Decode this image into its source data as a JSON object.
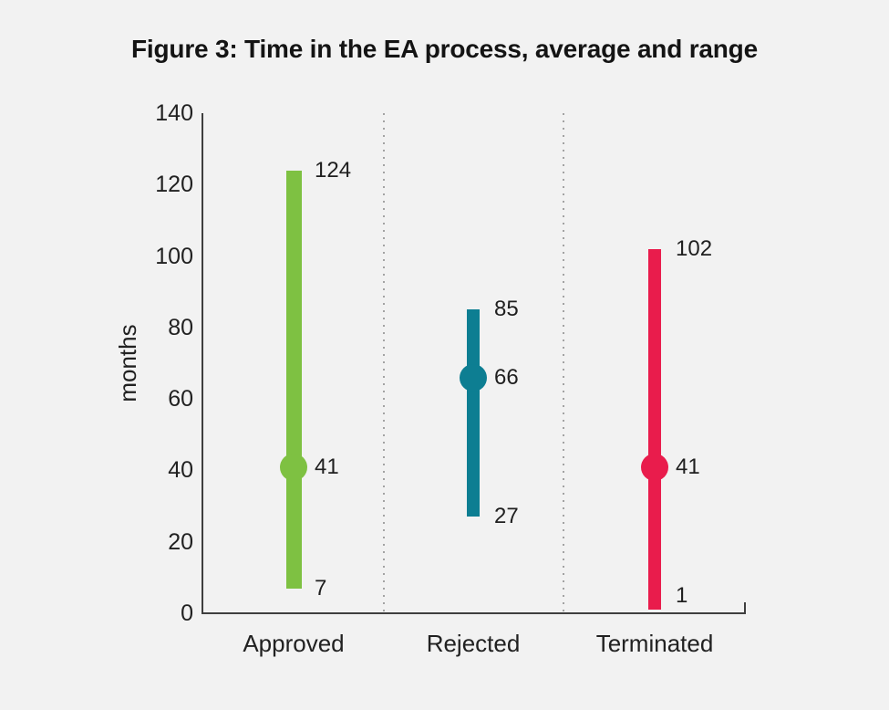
{
  "chart_data": {
    "type": "bar",
    "subtype": "floating-range-with-average-dot",
    "title": "Figure 3: Time in the EA process, average and range",
    "xlabel": "",
    "ylabel": "months",
    "ylim": [
      0,
      140
    ],
    "yticks": [
      0,
      20,
      40,
      60,
      80,
      100,
      120,
      140
    ],
    "grid": "dotted-vertical-separators-between-categories",
    "legend": "none",
    "categories": [
      "Approved",
      "Rejected",
      "Terminated"
    ],
    "series": [
      {
        "name": "Approved",
        "min": 7,
        "avg": 41,
        "max": 124,
        "color": "#7ec142"
      },
      {
        "name": "Rejected",
        "min": 27,
        "avg": 66,
        "max": 85,
        "color": "#0d7e92"
      },
      {
        "name": "Terminated",
        "min": 1,
        "avg": 41,
        "max": 102,
        "color": "#e91c4c"
      }
    ],
    "colors": {
      "background": "#f2f2f2",
      "axis": "#3f3f3f",
      "text": "#212121",
      "separator_dots": "#a3a3a3"
    }
  }
}
